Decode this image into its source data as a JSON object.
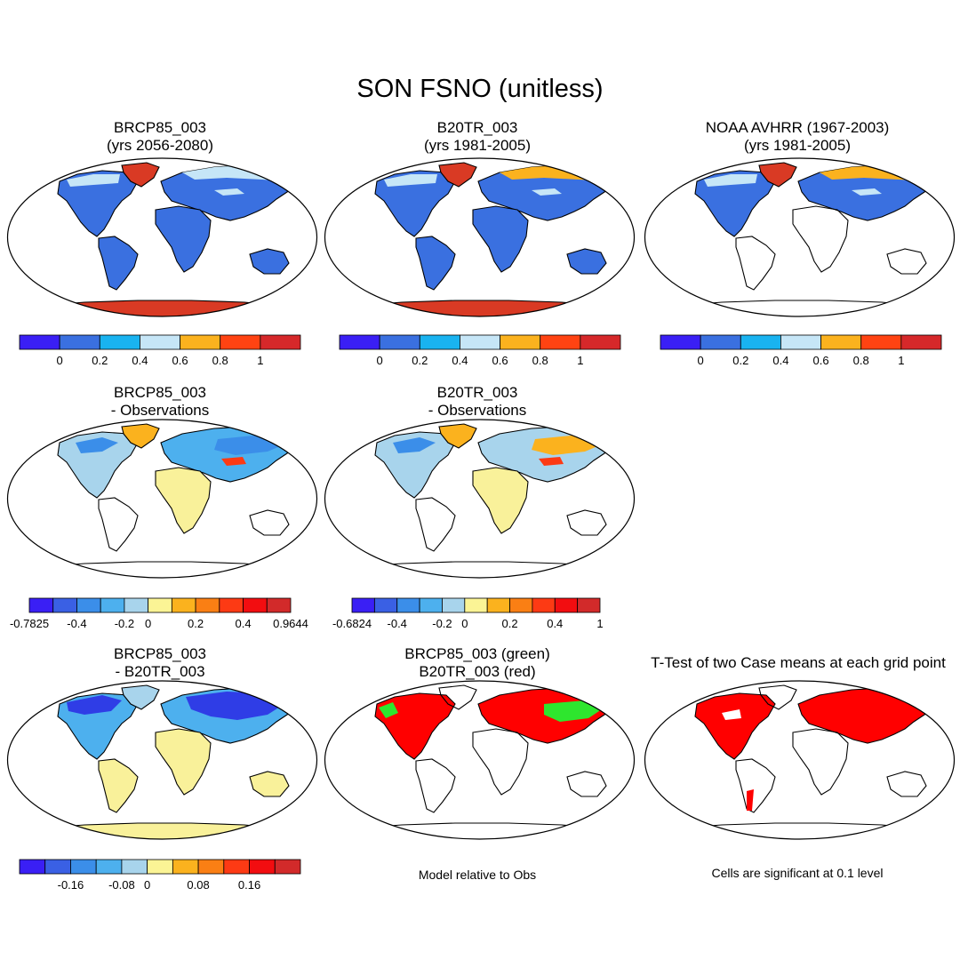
{
  "title": "SON FSNO (unitless)",
  "colors": {
    "abs": [
      "#3a1ff5",
      "#3a70e0",
      "#19b3f0",
      "#c6e6f7",
      "#fbb21e",
      "#ff4312",
      "#d6282a"
    ],
    "diff": [
      "#3a1ff5",
      "#3a60e4",
      "#3b8ee9",
      "#4db0ee",
      "#a8d4ec",
      "#fbf495",
      "#fbb21e",
      "#fa7f14",
      "#fd3a14",
      "#f20d10",
      "#d22a2a"
    ],
    "land": "#3a70e0",
    "diff_land": "#f9f19a",
    "snow_high": "#fbb21e",
    "snow_max": "#d93a24",
    "mid": "#c6e6f7",
    "blue_neg": "#2f3de6",
    "green": "#2ee62e",
    "red": "#ff0000"
  },
  "panels": [
    {
      "id": "p1",
      "title1": "BRCP85_003",
      "title2": "(yrs 2056-2080)",
      "type": "abs"
    },
    {
      "id": "p2",
      "title1": "B20TR_003",
      "title2": "(yrs 1981-2005)",
      "type": "abs"
    },
    {
      "id": "p3",
      "title1": "NOAA AVHRR (1967-2003)",
      "title2": "(yrs 1981-2005)",
      "type": "obs"
    },
    {
      "id": "p4",
      "title1": "BRCP85_003",
      "title2": "- Observations",
      "type": "bias1"
    },
    {
      "id": "p5",
      "title1": "B20TR_003",
      "title2": "- Observations",
      "type": "bias2"
    },
    {
      "id": "p6",
      "title1": "BRCP85_003",
      "title2": "- B20TR_003",
      "type": "diff"
    },
    {
      "id": "p7",
      "title1": "BRCP85_003 (green)",
      "title2": "B20TR_003 (red)",
      "type": "green_red"
    },
    {
      "id": "p8",
      "title1": "T-Test of two Case means at each grid point",
      "title2": "",
      "type": "ttest"
    }
  ],
  "colorbars": {
    "abs": {
      "labels": [
        "0",
        "0.2",
        "0.4",
        "0.6",
        "0.8",
        "1"
      ]
    },
    "bias1": {
      "labels": [
        "-0.7825",
        "-0.4",
        "-0.2",
        "0",
        "0.2",
        "0.4",
        "0.9644"
      ]
    },
    "bias2": {
      "labels": [
        "-0.6824",
        "-0.4",
        "-0.2",
        "0",
        "0.2",
        "0.4",
        "1"
      ]
    },
    "diff": {
      "labels": [
        "-0.16",
        "-0.08",
        "0",
        "0.08",
        "0.16"
      ]
    }
  },
  "notes": {
    "model_relative": "Model relative to Obs",
    "significance": "Cells are significant at 0.1 level"
  }
}
